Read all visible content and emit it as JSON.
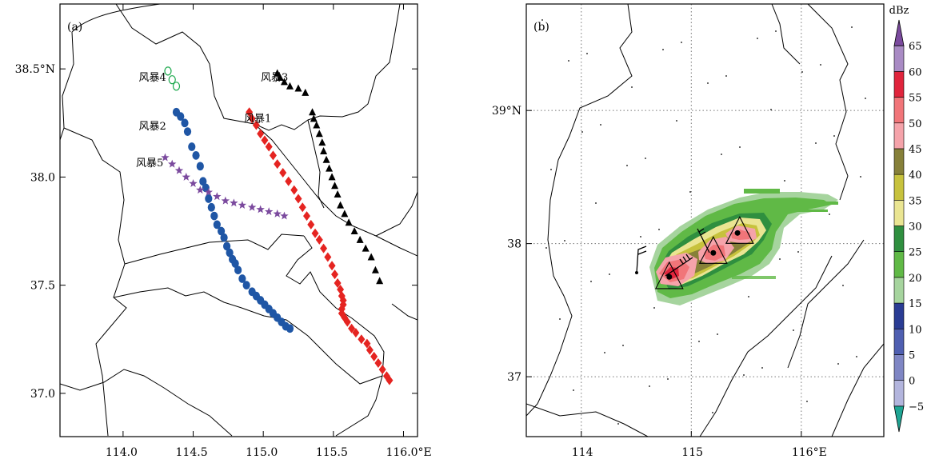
{
  "chart_data": [
    {
      "type": "scatter",
      "panel_label": "(a)",
      "x_range": [
        113.55,
        116.1
      ],
      "y_range": [
        36.8,
        38.8
      ],
      "x_ticks": [
        {
          "value": 114.0,
          "label": "114.0"
        },
        {
          "value": 114.5,
          "label": "114.5"
        },
        {
          "value": 115.0,
          "label": "115.0"
        },
        {
          "value": 115.5,
          "label": "115.5"
        },
        {
          "value": 116.0,
          "label": "116.0°E"
        }
      ],
      "y_ticks": [
        {
          "value": 37.0,
          "label": "37.0"
        },
        {
          "value": 37.5,
          "label": "37.5"
        },
        {
          "value": 38.0,
          "label": "38.0"
        },
        {
          "value": 38.5,
          "label": "38.5°N"
        }
      ],
      "storm_labels": [
        {
          "text": "风暴4",
          "lon": 114.21,
          "lat": 38.445
        },
        {
          "text": "风暴3",
          "lon": 115.08,
          "lat": 38.445
        },
        {
          "text": "风暴2",
          "lon": 114.21,
          "lat": 38.22
        },
        {
          "text": "风暴1",
          "lon": 114.96,
          "lat": 38.255
        },
        {
          "text": "风暴5",
          "lon": 114.19,
          "lat": 38.05
        }
      ],
      "series": [
        {
          "marker": "open-circle",
          "color": "#1aa84b",
          "x": [
            114.32,
            114.35,
            114.38
          ],
          "y": [
            38.49,
            38.45,
            38.42
          ]
        },
        {
          "marker": "triangle",
          "color": "#000000",
          "x": [
            115.1,
            115.12,
            115.15,
            115.19,
            115.25,
            115.3,
            115.35,
            115.36,
            115.38,
            115.4,
            115.42,
            115.43,
            115.45,
            115.47,
            115.49,
            115.51,
            115.53,
            115.55,
            115.58,
            115.61,
            115.65,
            115.69,
            115.73,
            115.77,
            115.8,
            115.83
          ],
          "y": [
            38.48,
            38.46,
            38.44,
            38.42,
            38.41,
            38.39,
            38.3,
            38.27,
            38.24,
            38.2,
            38.16,
            38.12,
            38.08,
            38.04,
            38.0,
            37.96,
            37.92,
            37.87,
            37.83,
            37.79,
            37.75,
            37.71,
            37.67,
            37.63,
            37.57,
            37.52
          ]
        },
        {
          "marker": "circle",
          "color": "#1f56a5",
          "x": [
            114.38,
            114.41,
            114.44,
            114.46,
            114.49,
            114.52,
            114.55,
            114.57,
            114.59,
            114.61,
            114.63,
            114.65,
            114.67,
            114.7,
            114.72,
            114.74,
            114.76,
            114.78,
            114.8,
            114.82,
            114.85,
            114.88,
            114.92,
            114.95,
            114.98,
            115.01,
            115.04,
            115.07,
            115.1,
            115.13,
            115.16,
            115.19
          ],
          "y": [
            38.3,
            38.28,
            38.25,
            38.21,
            38.14,
            38.1,
            38.05,
            37.98,
            37.95,
            37.9,
            37.86,
            37.82,
            37.78,
            37.75,
            37.72,
            37.68,
            37.65,
            37.62,
            37.6,
            37.57,
            37.53,
            37.5,
            37.47,
            37.45,
            37.43,
            37.41,
            37.39,
            37.37,
            37.35,
            37.33,
            37.31,
            37.3
          ]
        },
        {
          "marker": "diamond",
          "color": "#e52421",
          "x": [
            114.9,
            114.92,
            114.95,
            114.98,
            115.01,
            115.04,
            115.07,
            115.1,
            115.14,
            115.18,
            115.22,
            115.25,
            115.28,
            115.31,
            115.34,
            115.37,
            115.4,
            115.43,
            115.46,
            115.49,
            115.51,
            115.53,
            115.55,
            115.56,
            115.57,
            115.57,
            115.56,
            115.56,
            115.58,
            115.6,
            115.63,
            115.66,
            115.7,
            115.74,
            115.76,
            115.79,
            115.82,
            115.85,
            115.88,
            115.9
          ],
          "y": [
            38.3,
            38.27,
            38.24,
            38.2,
            38.17,
            38.14,
            38.1,
            38.06,
            38.02,
            37.98,
            37.94,
            37.9,
            37.86,
            37.82,
            37.78,
            37.74,
            37.71,
            37.67,
            37.63,
            37.59,
            37.55,
            37.51,
            37.48,
            37.45,
            37.43,
            37.41,
            37.39,
            37.37,
            37.35,
            37.33,
            37.3,
            37.28,
            37.25,
            37.23,
            37.2,
            37.17,
            37.14,
            37.11,
            37.08,
            37.06
          ]
        },
        {
          "marker": "star",
          "color": "#7b4a9e",
          "x": [
            114.3,
            114.35,
            114.4,
            114.45,
            114.5,
            114.55,
            114.61,
            114.67,
            114.73,
            114.79,
            114.85,
            114.92,
            114.98,
            115.04,
            115.1,
            115.15
          ],
          "y": [
            38.09,
            38.06,
            38.03,
            38.0,
            37.97,
            37.94,
            37.93,
            37.91,
            37.89,
            37.88,
            37.87,
            37.86,
            37.85,
            37.84,
            37.83,
            37.82
          ]
        }
      ]
    },
    {
      "type": "heatmap",
      "panel_label": "(b)",
      "x_range": [
        113.5,
        116.75
      ],
      "y_range": [
        36.55,
        39.8
      ],
      "x_ticks": [
        {
          "value": 114,
          "label": "114"
        },
        {
          "value": 115,
          "label": "115"
        },
        {
          "value": 116,
          "label": "116°E"
        }
      ],
      "y_ticks": [
        {
          "value": 37,
          "label": "37"
        },
        {
          "value": 38,
          "label": "38"
        },
        {
          "value": 39,
          "label": "39°N"
        }
      ],
      "grid_lines": {
        "x": [
          114,
          115,
          116
        ],
        "y": [
          37,
          38,
          39
        ]
      },
      "colorbar": {
        "unit": "dBz",
        "levels": [
          "−5",
          "0",
          "5",
          "10",
          "15",
          "20",
          "25",
          "30",
          "35",
          "40",
          "45",
          "50",
          "55",
          "60",
          "65"
        ],
        "colors": [
          "#1fa594",
          "#b3b5dd",
          "#7f86c4",
          "#4f5fb1",
          "#2a3c94",
          "#a6d49e",
          "#60b946",
          "#2f8f3f",
          "#eae592",
          "#c7c23d",
          "#868039",
          "#f5a3aa",
          "#f17579",
          "#e0243c",
          "#a98bc4",
          "#7b4a9e"
        ]
      },
      "storm_triangles": [
        {
          "lon": 114.8,
          "lat": 37.74
        },
        {
          "lon": 115.2,
          "lat": 37.93
        },
        {
          "lon": 115.44,
          "lat": 38.08
        }
      ],
      "storm_centers": [
        {
          "lon": 114.8,
          "lat": 37.75
        },
        {
          "lon": 115.2,
          "lat": 37.93
        },
        {
          "lon": 115.42,
          "lat": 38.08
        }
      ]
    }
  ]
}
